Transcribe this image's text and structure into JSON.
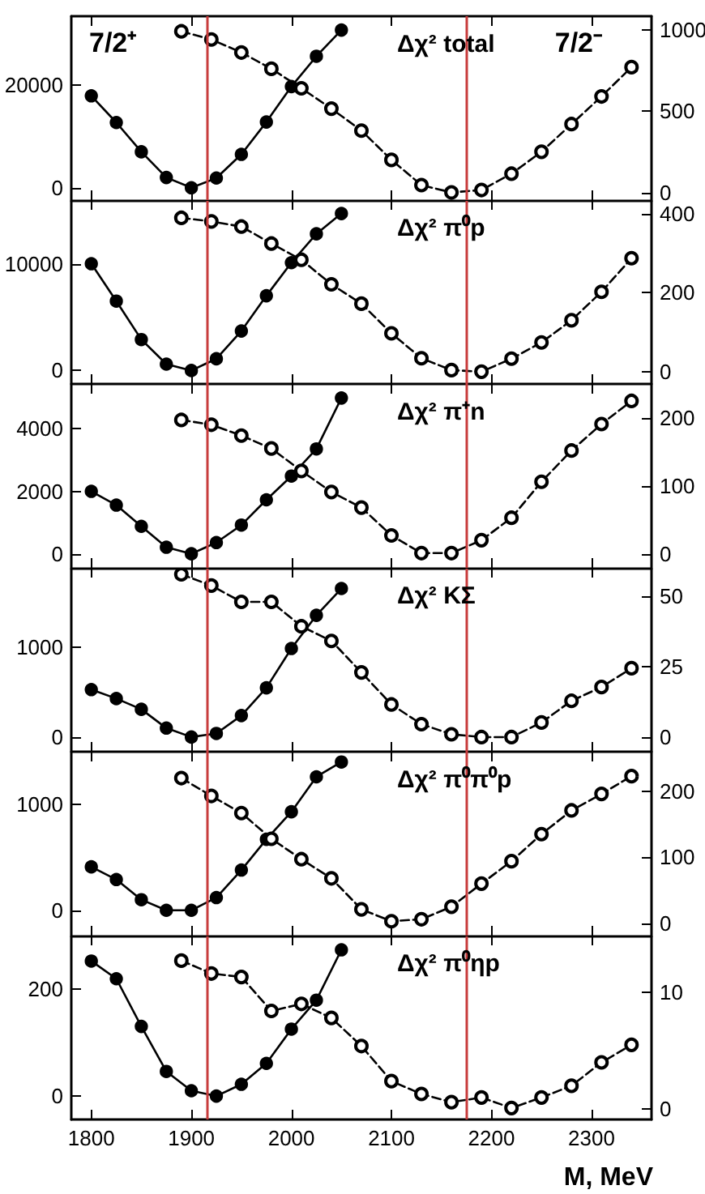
{
  "chart_data": [
    {
      "type": "line",
      "title": "Δχ² total",
      "annotations": [
        "7/2⁺",
        "7/2⁻"
      ],
      "series": [
        {
          "color": "#000000",
          "line_style": "solid",
          "marker": "circle",
          "x": [
            1800,
            1825,
            1850,
            1875,
            1900,
            1925,
            1950,
            1975,
            2000,
            2025,
            2050
          ],
          "values": [
            17900,
            12700,
            7000,
            2000,
            0,
            1900,
            6500,
            12800,
            19700,
            25600,
            30700
          ]
        },
        {
          "color": "#000000",
          "line_style": "dashed",
          "marker": "circle",
          "axis": "y2",
          "x": [
            1890,
            1920,
            1950,
            1980,
            2010,
            2040,
            2070,
            2100,
            2130,
            2160,
            2190,
            2220,
            2250,
            2280,
            2310,
            2340
          ],
          "values": [
            990,
            940,
            860,
            760,
            640,
            515,
            380,
            200,
            45,
            0,
            15,
            115,
            250,
            420,
            590,
            770
          ]
        }
      ],
      "xlim": [
        1780,
        2360
      ],
      "xticks": [
        1800,
        1900,
        2000,
        2100,
        2200,
        2300
      ],
      "ylim": [
        -2400,
        33400
      ],
      "yticks": [
        0,
        20000
      ],
      "y2lim": [
        -47,
        1083
      ],
      "y2ticks": [
        0,
        500,
        1000
      ],
      "tick_labels": "y",
      "ref_lines": [
        {
          "axis": "x",
          "value": 1915,
          "color": "#c83c3c"
        },
        {
          "axis": "x",
          "value": 2175,
          "color": "#c83c3c"
        }
      ]
    },
    {
      "type": "line",
      "title": "Δχ² π⁰p",
      "series": [
        {
          "color": "#000000",
          "line_style": "solid",
          "marker": "circle",
          "x": [
            1800,
            1825,
            1850,
            1875,
            1900,
            1925,
            1950,
            1975,
            2000,
            2025,
            2050
          ],
          "values": [
            10000,
            6500,
            2900,
            600,
            0,
            1100,
            3700,
            7000,
            10100,
            12800,
            14700
          ]
        },
        {
          "color": "#000000",
          "line_style": "dashed",
          "marker": "circle",
          "axis": "y2",
          "x": [
            1890,
            1920,
            1950,
            1980,
            2010,
            2040,
            2070,
            2100,
            2130,
            2160,
            2190,
            2220,
            2250,
            2280,
            2310,
            2340
          ],
          "values": [
            389,
            380,
            367,
            324,
            283,
            221,
            172,
            97,
            34,
            4,
            0,
            33,
            74,
            130,
            202,
            287
          ]
        }
      ],
      "xlim": [
        1780,
        2360
      ],
      "xticks": [
        1800,
        1900,
        2000,
        2100,
        2200,
        2300
      ],
      "ylim": [
        -1260,
        15960
      ],
      "yticks": [
        0,
        10000
      ],
      "y2lim": [
        -31,
        434
      ],
      "y2ticks": [
        0,
        200,
        400
      ],
      "tick_labels": "y",
      "ref_lines": [
        {
          "axis": "x",
          "value": 1915,
          "color": "#c83c3c"
        },
        {
          "axis": "x",
          "value": 2175,
          "color": "#c83c3c"
        }
      ]
    },
    {
      "type": "line",
      "title": "Δχ² π⁺n",
      "series": [
        {
          "color": "#000000",
          "line_style": "solid",
          "marker": "circle",
          "x": [
            1800,
            1825,
            1850,
            1875,
            1900,
            1925,
            1950,
            1975,
            2000,
            2025,
            2050
          ],
          "values": [
            2000,
            1560,
            880,
            210,
            0,
            360,
            920,
            1730,
            2490,
            3360,
            4990
          ]
        },
        {
          "color": "#000000",
          "line_style": "dashed",
          "marker": "circle",
          "axis": "y2",
          "x": [
            1890,
            1920,
            1950,
            1980,
            2010,
            2040,
            2070,
            2100,
            2130,
            2160,
            2190,
            2220,
            2250,
            2280,
            2310,
            2340
          ],
          "values": [
            197,
            190,
            174,
            155,
            122,
            91,
            68,
            27,
            1,
            1,
            20,
            53,
            106,
            152,
            191,
            225
          ]
        }
      ],
      "xlim": [
        1780,
        2360
      ],
      "xticks": [
        1800,
        1900,
        2000,
        2100,
        2200,
        2300
      ],
      "ylim": [
        -450,
        5440
      ],
      "yticks": [
        0,
        2000,
        4000
      ],
      "y2lim": [
        -20.7,
        250
      ],
      "y2ticks": [
        0,
        100,
        200
      ],
      "tick_labels": "y",
      "ref_lines": [
        {
          "axis": "x",
          "value": 1915,
          "color": "#c83c3c"
        },
        {
          "axis": "x",
          "value": 2175,
          "color": "#c83c3c"
        }
      ]
    },
    {
      "type": "line",
      "title": "Δχ² KΣ",
      "series": [
        {
          "color": "#000000",
          "line_style": "solid",
          "marker": "circle",
          "x": [
            1800,
            1825,
            1850,
            1875,
            1900,
            1925,
            1950,
            1975,
            2000,
            2025,
            2050
          ],
          "values": [
            530,
            430,
            310,
            100,
            0,
            40,
            240,
            550,
            990,
            1360,
            1660
          ]
        },
        {
          "color": "#000000",
          "line_style": "dashed",
          "marker": "circle",
          "axis": "y2",
          "x": [
            1890,
            1920,
            1950,
            1980,
            2010,
            2040,
            2070,
            2100,
            2130,
            2160,
            2190,
            2220,
            2250,
            2280,
            2310,
            2340
          ],
          "values": [
            57.9,
            53.9,
            48.1,
            48.1,
            39.4,
            34.2,
            23,
            11.6,
            4.6,
            1,
            0,
            0,
            5.2,
            12.9,
            17.8,
            24.5
          ]
        }
      ],
      "xlim": [
        1780,
        2360
      ],
      "xticks": [
        1800,
        1900,
        2000,
        2100,
        2200,
        2300
      ],
      "ylim": [
        -164,
        1891
      ],
      "yticks": [
        0,
        1000
      ],
      "y2lim": [
        -5.2,
        60.2
      ],
      "y2ticks": [
        0,
        25,
        50
      ],
      "tick_labels": "y",
      "ref_lines": [
        {
          "axis": "x",
          "value": 1915,
          "color": "#c83c3c"
        },
        {
          "axis": "x",
          "value": 2175,
          "color": "#c83c3c"
        }
      ]
    },
    {
      "type": "line",
      "title": "Δχ² π⁰π⁰p",
      "series": [
        {
          "color": "#000000",
          "line_style": "solid",
          "marker": "circle",
          "x": [
            1800,
            1825,
            1850,
            1875,
            1900,
            1925,
            1950,
            1975,
            2000,
            2025,
            2050
          ],
          "values": [
            410,
            290,
            100,
            0,
            0,
            120,
            380,
            670,
            930,
            1260,
            1400
          ]
        },
        {
          "color": "#000000",
          "line_style": "dashed",
          "marker": "circle",
          "axis": "y2",
          "x": [
            1890,
            1920,
            1950,
            1980,
            2010,
            2040,
            2070,
            2100,
            2130,
            2160,
            2190,
            2220,
            2250,
            2280,
            2310,
            2340
          ],
          "values": [
            220,
            193,
            167,
            128,
            97,
            68,
            21,
            3,
            6,
            25,
            60,
            94,
            135,
            171,
            196,
            223
          ]
        }
      ],
      "xlim": [
        1780,
        2360
      ],
      "xticks": [
        1800,
        1900,
        2000,
        2100,
        2200,
        2300
      ],
      "ylim": [
        -239,
        1497
      ],
      "yticks": [
        0,
        1000
      ],
      "y2lim": [
        -18.8,
        260
      ],
      "y2ticks": [
        0,
        100,
        200
      ],
      "tick_labels": "y",
      "ref_lines": [
        {
          "axis": "x",
          "value": 1915,
          "color": "#c83c3c"
        },
        {
          "axis": "x",
          "value": 2175,
          "color": "#c83c3c"
        }
      ]
    },
    {
      "type": "line",
      "title": "Δχ² π⁰ηp",
      "xlabel": "M, MeV",
      "series": [
        {
          "color": "#000000",
          "line_style": "solid",
          "marker": "circle",
          "x": [
            1800,
            1825,
            1850,
            1875,
            1900,
            1925,
            1950,
            1975,
            2000,
            2025,
            2050
          ],
          "values": [
            252,
            219,
            130,
            46,
            10,
            0,
            22,
            61,
            125,
            179,
            273
          ]
        },
        {
          "color": "#000000",
          "line_style": "dashed",
          "marker": "circle",
          "axis": "y2",
          "x": [
            1890,
            1920,
            1950,
            1980,
            2010,
            2040,
            2070,
            2100,
            2130,
            2160,
            2190,
            2220,
            2250,
            2280,
            2310,
            2340
          ],
          "values": [
            12.7,
            11.6,
            11.3,
            8.4,
            9,
            7.8,
            5.4,
            2.4,
            1.3,
            0.6,
            1,
            0.1,
            1,
            2,
            4,
            5.5
          ]
        }
      ],
      "xlim": [
        1780,
        2360
      ],
      "xticks": [
        1800,
        1900,
        2000,
        2100,
        2200,
        2300
      ],
      "ylim": [
        -43.7,
        299.5
      ],
      "yticks": [
        0,
        200
      ],
      "y2lim": [
        -0.88,
        14.84
      ],
      "y2ticks": [
        0,
        10
      ],
      "ref_lines": [
        {
          "axis": "x",
          "value": 1915,
          "color": "#c83c3c"
        },
        {
          "axis": "x",
          "value": 2175,
          "color": "#c83c3c"
        }
      ]
    }
  ]
}
